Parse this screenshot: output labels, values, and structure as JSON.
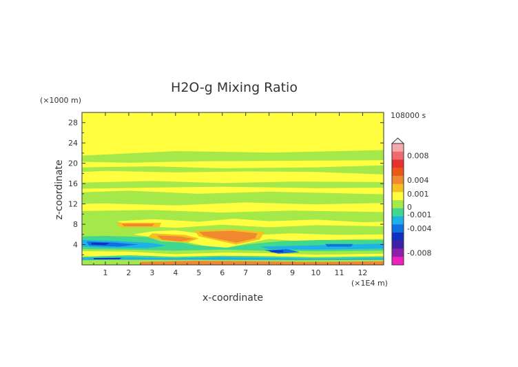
{
  "chart_data": {
    "type": "heatmap",
    "title": "H2O-g Mixing Ratio",
    "xlabel": "x-coordinate",
    "ylabel": "z-coordinate",
    "x_unit": "(×1E4 m)",
    "y_unit": "(×1000 m)",
    "time_label": "108000 s",
    "xlim": [
      0,
      12.9
    ],
    "ylim": [
      0,
      30
    ],
    "x_ticks": [
      "1",
      "2",
      "3",
      "4",
      "5",
      "6",
      "7",
      "8",
      "9",
      "10",
      "11",
      "12"
    ],
    "y_ticks": [
      "4",
      "8",
      "12",
      "16",
      "20",
      "24",
      "28"
    ],
    "colorbar": {
      "labels": [
        "0.008",
        "0.004",
        "0.001",
        "0",
        "-0.001",
        "-0.004",
        "-0.008"
      ],
      "levels": [
        {
          "value": 0.01,
          "color": "#f7a8ae"
        },
        {
          "value": 0.008,
          "color": "#f06870"
        },
        {
          "value": 0.006,
          "color": "#e83030"
        },
        {
          "value": 0.004,
          "color": "#e85a18"
        },
        {
          "value": 0.002,
          "color": "#f08830"
        },
        {
          "value": 0.001,
          "color": "#f5c020"
        },
        {
          "value": 0.0005,
          "color": "#ffff40"
        },
        {
          "value": 0.0,
          "color": "#a4e84a"
        },
        {
          "value": -0.0005,
          "color": "#40d890"
        },
        {
          "value": -0.001,
          "color": "#20b0e8"
        },
        {
          "value": -0.002,
          "color": "#1070e0"
        },
        {
          "value": -0.004,
          "color": "#1030c0"
        },
        {
          "value": -0.006,
          "color": "#4020a8"
        },
        {
          "value": -0.008,
          "color": "#9020a8"
        },
        {
          "value": -0.01,
          "color": "#f020c0"
        }
      ]
    },
    "background_color": "#ffff40",
    "regions": [
      {
        "level": 0.0,
        "poly": [
          [
            0,
            21.5
          ],
          [
            4,
            22.4
          ],
          [
            8,
            22.1
          ],
          [
            12.9,
            22.6
          ],
          [
            12.9,
            20.6
          ],
          [
            9,
            20.5
          ],
          [
            5,
            20.4
          ],
          [
            2,
            20.1
          ],
          [
            0,
            20.3
          ]
        ]
      },
      {
        "level": 0.0,
        "poly": [
          [
            0,
            19.2
          ],
          [
            3,
            19.4
          ],
          [
            6,
            19.0
          ],
          [
            10,
            19.2
          ],
          [
            12.9,
            19.6
          ],
          [
            12.9,
            17.8
          ],
          [
            10,
            18.3
          ],
          [
            7,
            18.4
          ],
          [
            4,
            18.2
          ],
          [
            1,
            18.5
          ],
          [
            0,
            18.3
          ]
        ]
      },
      {
        "level": 0.0,
        "poly": [
          [
            0,
            16.2
          ],
          [
            3,
            16.5
          ],
          [
            6,
            16.1
          ],
          [
            9,
            16.4
          ],
          [
            12.9,
            16.3
          ],
          [
            12.9,
            15.2
          ],
          [
            10,
            15.1
          ],
          [
            6,
            15.4
          ],
          [
            3,
            15.2
          ],
          [
            0,
            15.0
          ]
        ]
      },
      {
        "level": 0.0,
        "poly": [
          [
            0,
            14.3
          ],
          [
            2,
            14.6
          ],
          [
            5,
            14.0
          ],
          [
            8,
            14.4
          ],
          [
            12.9,
            13.9
          ],
          [
            12.9,
            12.2
          ],
          [
            10,
            11.9
          ],
          [
            7,
            12.3
          ],
          [
            4,
            11.7
          ],
          [
            1,
            12.1
          ],
          [
            0,
            12.0
          ]
        ]
      },
      {
        "level": 0.0,
        "poly": [
          [
            0,
            10.6
          ],
          [
            3,
            10.8
          ],
          [
            6,
            10.3
          ],
          [
            9,
            10.7
          ],
          [
            12.9,
            10.4
          ],
          [
            12.9,
            0
          ],
          [
            0,
            0
          ]
        ]
      },
      {
        "level": 0.0005,
        "poly": [
          [
            1.5,
            8.6
          ],
          [
            3,
            9.0
          ],
          [
            5,
            8.5
          ],
          [
            6.5,
            9.1
          ],
          [
            8,
            8.6
          ],
          [
            10,
            8.9
          ],
          [
            12,
            8.4
          ],
          [
            12.9,
            8.5
          ],
          [
            12.9,
            7.6
          ],
          [
            10,
            7.8
          ],
          [
            8,
            7.4
          ],
          [
            6,
            7.9
          ],
          [
            4,
            7.3
          ],
          [
            2,
            7.8
          ]
        ]
      },
      {
        "level": 0.0005,
        "poly": [
          [
            3,
            6.6
          ],
          [
            4,
            6.8
          ],
          [
            5.2,
            6.1
          ],
          [
            6.5,
            6.6
          ],
          [
            7.5,
            5.9
          ],
          [
            9,
            6.2
          ],
          [
            11,
            5.9
          ],
          [
            12.9,
            6.0
          ],
          [
            12.9,
            5.1
          ],
          [
            11,
            5.0
          ],
          [
            9.5,
            4.6
          ],
          [
            8,
            5.1
          ],
          [
            6.8,
            4.0
          ],
          [
            6,
            3.2
          ],
          [
            5.2,
            3.8
          ],
          [
            4.6,
            4.4
          ],
          [
            3.8,
            5.3
          ],
          [
            2.8,
            5.6
          ],
          [
            2.2,
            6.0
          ]
        ]
      },
      {
        "level": 0.0005,
        "poly": [
          [
            0,
            2.7
          ],
          [
            2,
            2.6
          ],
          [
            4,
            2.1
          ],
          [
            6,
            2.4
          ],
          [
            8,
            2.3
          ],
          [
            10,
            2.0
          ],
          [
            12.9,
            2.2
          ],
          [
            12.9,
            1.4
          ],
          [
            10,
            1.2
          ],
          [
            8,
            1.5
          ],
          [
            6,
            1.3
          ],
          [
            4,
            1.5
          ],
          [
            2,
            1.6
          ],
          [
            0,
            1.3
          ]
        ]
      },
      {
        "level": 0.001,
        "poly": [
          [
            3.0,
            6.2
          ],
          [
            4.4,
            5.9
          ],
          [
            5.0,
            5.2
          ],
          [
            4.5,
            4.4
          ],
          [
            3.5,
            4.8
          ],
          [
            2.8,
            5.4
          ]
        ]
      },
      {
        "level": 0.001,
        "poly": [
          [
            4.8,
            6.7
          ],
          [
            6.4,
            7.0
          ],
          [
            7.8,
            6.5
          ],
          [
            7.6,
            5.0
          ],
          [
            6.6,
            4.0
          ],
          [
            5.8,
            4.8
          ],
          [
            5.0,
            5.6
          ]
        ]
      },
      {
        "level": 0.001,
        "poly": [
          [
            1.5,
            8.3
          ],
          [
            3.4,
            8.3
          ],
          [
            3.3,
            7.4
          ],
          [
            1.6,
            7.4
          ]
        ]
      },
      {
        "level": 0.001,
        "poly": [
          [
            8.5,
            3.6
          ],
          [
            9.8,
            3.7
          ],
          [
            9.7,
            2.8
          ],
          [
            8.6,
            2.9
          ]
        ]
      },
      {
        "level": 0.002,
        "poly": [
          [
            1.7,
            8.1
          ],
          [
            3.1,
            8.1
          ],
          [
            3.0,
            7.6
          ],
          [
            1.8,
            7.6
          ]
        ]
      },
      {
        "level": 0.002,
        "poly": [
          [
            3.2,
            5.8
          ],
          [
            4.2,
            5.6
          ],
          [
            4.8,
            5.1
          ],
          [
            4.2,
            4.6
          ],
          [
            3.4,
            5.0
          ]
        ]
      },
      {
        "level": 0.002,
        "poly": [
          [
            5.0,
            6.5
          ],
          [
            6.4,
            6.7
          ],
          [
            7.5,
            6.2
          ],
          [
            7.4,
            5.2
          ],
          [
            6.6,
            4.4
          ],
          [
            5.8,
            5.1
          ],
          [
            5.2,
            5.7
          ]
        ]
      },
      {
        "level": 0.002,
        "poly": [
          [
            8.7,
            3.5
          ],
          [
            9.6,
            3.5
          ],
          [
            9.5,
            3.0
          ],
          [
            8.8,
            3.0
          ]
        ]
      },
      {
        "level": 0.002,
        "poly": [
          [
            2.5,
            0.6
          ],
          [
            4.8,
            0.8
          ],
          [
            7.5,
            0.7
          ],
          [
            10,
            0.6
          ],
          [
            12.9,
            0.7
          ],
          [
            12.9,
            0
          ],
          [
            2.5,
            0
          ]
        ]
      },
      {
        "level": -0.0005,
        "poly": [
          [
            0,
            5.6
          ],
          [
            1,
            5.7
          ],
          [
            2.8,
            5.5
          ],
          [
            3.4,
            4.6
          ],
          [
            4.3,
            4.4
          ],
          [
            4.8,
            3.9
          ],
          [
            6.2,
            3.4
          ],
          [
            7.2,
            4.1
          ],
          [
            8.6,
            4.7
          ],
          [
            10.2,
            4.9
          ],
          [
            12.9,
            4.9
          ],
          [
            12.9,
            2.8
          ],
          [
            10,
            2.7
          ],
          [
            8,
            2.8
          ],
          [
            6,
            3.0
          ],
          [
            4,
            2.8
          ],
          [
            2,
            3.0
          ],
          [
            0,
            3.1
          ]
        ]
      },
      {
        "level": -0.0005,
        "poly": [
          [
            0,
            1.6
          ],
          [
            2,
            1.9
          ],
          [
            4,
            1.6
          ],
          [
            6,
            1.8
          ],
          [
            8,
            1.7
          ],
          [
            10,
            1.5
          ],
          [
            12.9,
            1.7
          ],
          [
            12.9,
            1.0
          ],
          [
            9,
            0.9
          ],
          [
            5,
            1.0
          ],
          [
            2,
            1.1
          ],
          [
            0,
            0.9
          ]
        ]
      },
      {
        "level": -0.001,
        "poly": [
          [
            0,
            4.9
          ],
          [
            1.5,
            4.7
          ],
          [
            3.0,
            4.3
          ],
          [
            3.6,
            3.8
          ],
          [
            2.8,
            3.3
          ],
          [
            1,
            3.4
          ],
          [
            0,
            3.6
          ]
        ]
      },
      {
        "level": -0.001,
        "poly": [
          [
            7.6,
            3.6
          ],
          [
            9.5,
            3.8
          ],
          [
            12.9,
            4.2
          ],
          [
            12.9,
            3.2
          ],
          [
            10,
            3.0
          ],
          [
            8,
            3.1
          ]
        ]
      },
      {
        "level": -0.001,
        "poly": [
          [
            0,
            1.4
          ],
          [
            2,
            1.5
          ],
          [
            4,
            1.3
          ],
          [
            6,
            1.5
          ],
          [
            8,
            1.4
          ],
          [
            10,
            1.2
          ],
          [
            12.9,
            1.3
          ],
          [
            12.9,
            1.0
          ],
          [
            0,
            1.0
          ]
        ]
      },
      {
        "level": -0.002,
        "poly": [
          [
            0.2,
            4.6
          ],
          [
            1.4,
            4.4
          ],
          [
            2.4,
            4.0
          ],
          [
            1.6,
            3.6
          ],
          [
            0.3,
            3.8
          ]
        ]
      },
      {
        "level": -0.002,
        "poly": [
          [
            7.8,
            2.9
          ],
          [
            8.8,
            3.1
          ],
          [
            9.3,
            2.5
          ],
          [
            8.4,
            2.2
          ]
        ]
      },
      {
        "level": -0.002,
        "poly": [
          [
            10.4,
            4.1
          ],
          [
            11.6,
            4.1
          ],
          [
            11.5,
            3.6
          ],
          [
            10.5,
            3.6
          ]
        ]
      },
      {
        "level": -0.004,
        "poly": [
          [
            0.4,
            4.4
          ],
          [
            1.2,
            4.3
          ],
          [
            1.0,
            3.9
          ],
          [
            0.4,
            4.0
          ]
        ]
      },
      {
        "level": -0.004,
        "poly": [
          [
            8.0,
            2.8
          ],
          [
            8.6,
            2.9
          ],
          [
            8.6,
            2.5
          ],
          [
            8.1,
            2.5
          ]
        ]
      },
      {
        "level": -0.004,
        "poly": [
          [
            0.5,
            1.35
          ],
          [
            1.7,
            1.4
          ],
          [
            1.6,
            1.1
          ],
          [
            0.5,
            1.1
          ]
        ]
      }
    ]
  }
}
